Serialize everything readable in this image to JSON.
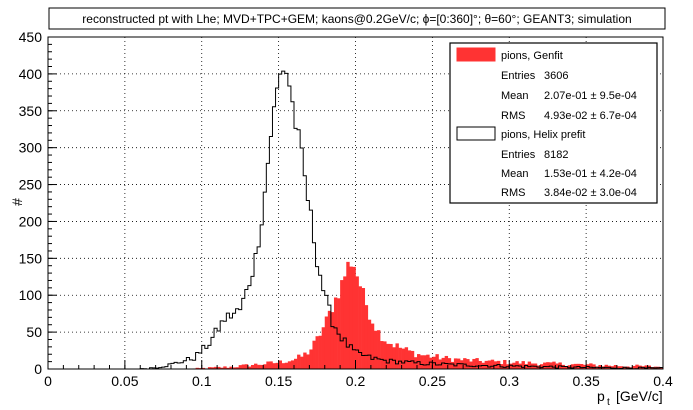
{
  "chart_data": {
    "type": "histogram",
    "title": "reconstructed pt with Lhe; MVD+TPC+GEM; kaons@0.2GeV/c; ϕ=[0:360]°; θ=60°; GEANT3; simulation",
    "xlabel_main": "p",
    "xlabel_sub": "t",
    "xlabel_unit": "[GeV/c]",
    "ylabel": "#",
    "xlim": [
      0,
      0.4
    ],
    "ylim": [
      0,
      450
    ],
    "xticks": [
      0,
      0.05,
      0.1,
      0.15,
      0.2,
      0.25,
      0.3,
      0.35,
      0.4
    ],
    "xtick_labels": [
      "0",
      "0.05",
      "0.1",
      "0.15",
      "0.2",
      "0.25",
      "0.3",
      "0.35",
      "0.4"
    ],
    "yticks": [
      0,
      50,
      100,
      150,
      200,
      250,
      300,
      350,
      400,
      450
    ],
    "ytick_labels": [
      "0",
      "50",
      "100",
      "150",
      "200",
      "250",
      "300",
      "350",
      "400",
      "450"
    ],
    "grid": true,
    "legend_position": "top-right",
    "bin_width": 0.002,
    "series": [
      {
        "name": "pions, Genfit",
        "style": "filled",
        "color": "#ff3333",
        "stats": [
          {
            "label": "Entries",
            "value": "3606"
          },
          {
            "label": "Mean",
            "value": "2.07e-01 ± 9.5e-04"
          },
          {
            "label": "RMS",
            "value": "4.93e-02 ± 6.7e-04"
          }
        ],
        "peak_points": [
          [
            0.09,
            0
          ],
          [
            0.1,
            1
          ],
          [
            0.11,
            2
          ],
          [
            0.12,
            3
          ],
          [
            0.13,
            5
          ],
          [
            0.14,
            7
          ],
          [
            0.15,
            9
          ],
          [
            0.16,
            13
          ],
          [
            0.165,
            17
          ],
          [
            0.17,
            24
          ],
          [
            0.175,
            40
          ],
          [
            0.18,
            60
          ],
          [
            0.185,
            85
          ],
          [
            0.19,
            110
          ],
          [
            0.195,
            140
          ],
          [
            0.198,
            148
          ],
          [
            0.2,
            135
          ],
          [
            0.205,
            100
          ],
          [
            0.21,
            70
          ],
          [
            0.215,
            50
          ],
          [
            0.22,
            38
          ],
          [
            0.23,
            28
          ],
          [
            0.24,
            20
          ],
          [
            0.25,
            17
          ],
          [
            0.26,
            14
          ],
          [
            0.28,
            11
          ],
          [
            0.3,
            9
          ],
          [
            0.33,
            7
          ],
          [
            0.36,
            5
          ],
          [
            0.4,
            3
          ]
        ]
      },
      {
        "name": "pions, Helix prefit",
        "style": "outline",
        "color": "#000000",
        "stats": [
          {
            "label": "Entries",
            "value": "8182"
          },
          {
            "label": "Mean",
            "value": "1.53e-01 ± 4.2e-04"
          },
          {
            "label": "RMS",
            "value": "3.84e-02 ± 3.0e-04"
          }
        ],
        "peak_points": [
          [
            0.06,
            0
          ],
          [
            0.07,
            2
          ],
          [
            0.08,
            6
          ],
          [
            0.09,
            12
          ],
          [
            0.095,
            15
          ],
          [
            0.1,
            25
          ],
          [
            0.105,
            35
          ],
          [
            0.11,
            52
          ],
          [
            0.115,
            68
          ],
          [
            0.12,
            74
          ],
          [
            0.125,
            80
          ],
          [
            0.13,
            110
          ],
          [
            0.135,
            150
          ],
          [
            0.14,
            220
          ],
          [
            0.145,
            320
          ],
          [
            0.15,
            390
          ],
          [
            0.153,
            410
          ],
          [
            0.156,
            400
          ],
          [
            0.16,
            345
          ],
          [
            0.165,
            285
          ],
          [
            0.17,
            218
          ],
          [
            0.175,
            150
          ],
          [
            0.18,
            98
          ],
          [
            0.185,
            65
          ],
          [
            0.19,
            45
          ],
          [
            0.195,
            32
          ],
          [
            0.2,
            22
          ],
          [
            0.21,
            15
          ],
          [
            0.22,
            11
          ],
          [
            0.24,
            8
          ],
          [
            0.26,
            6
          ],
          [
            0.3,
            4
          ],
          [
            0.35,
            2
          ],
          [
            0.4,
            1
          ]
        ]
      }
    ]
  }
}
